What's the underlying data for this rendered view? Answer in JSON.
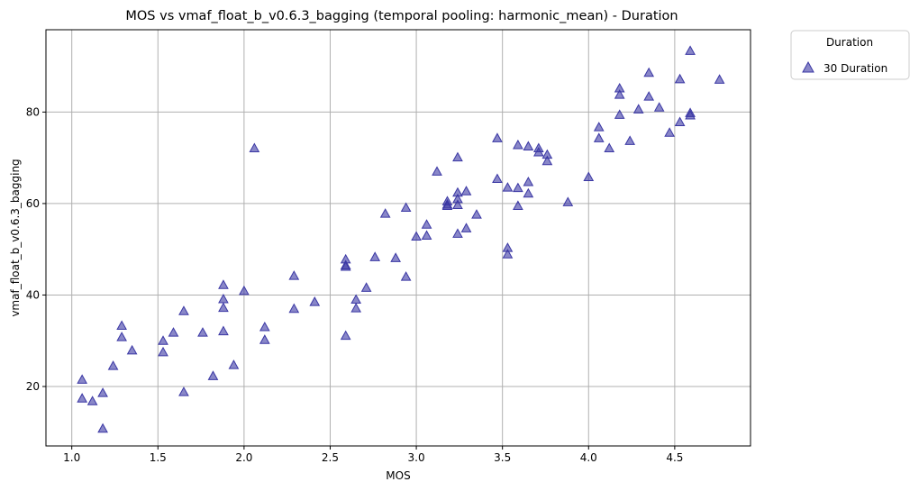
{
  "chart_data": {
    "type": "scatter",
    "title": "MOS vs vmaf_float_b_v0.6.3_bagging (temporal pooling: harmonic_mean) - Duration",
    "xlabel": "MOS",
    "ylabel": "vmaf_float_b_v0.6.3_bagging",
    "xlim": [
      0.85,
      4.94
    ],
    "ylim": [
      7,
      98
    ],
    "xticks": [
      "1.0",
      "1.5",
      "2.0",
      "2.5",
      "3.0",
      "3.5",
      "4.0",
      "4.5"
    ],
    "xtick_values": [
      1.0,
      1.5,
      2.0,
      2.5,
      3.0,
      3.5,
      4.0,
      4.5
    ],
    "yticks": [
      "20",
      "40",
      "60",
      "80"
    ],
    "ytick_values": [
      20,
      40,
      60,
      80
    ],
    "grid": true,
    "legend": {
      "title": "Duration",
      "position": "outside-top-right"
    },
    "series": [
      {
        "name": "30 Duration",
        "color": "#3a37a4",
        "marker": "triangle-up",
        "points": [
          [
            1.06,
            21.5
          ],
          [
            1.06,
            17.4
          ],
          [
            1.12,
            16.8
          ],
          [
            1.18,
            18.6
          ],
          [
            1.18,
            10.8
          ],
          [
            1.24,
            24.5
          ],
          [
            1.29,
            33.3
          ],
          [
            1.29,
            30.8
          ],
          [
            1.35,
            27.9
          ],
          [
            1.53,
            30.0
          ],
          [
            1.53,
            27.5
          ],
          [
            1.59,
            31.8
          ],
          [
            1.65,
            36.5
          ],
          [
            1.65,
            18.8
          ],
          [
            1.76,
            31.8
          ],
          [
            1.82,
            22.3
          ],
          [
            1.88,
            42.2
          ],
          [
            1.88,
            39.1
          ],
          [
            1.88,
            37.2
          ],
          [
            1.88,
            32.1
          ],
          [
            1.94,
            24.7
          ],
          [
            2.0,
            40.9
          ],
          [
            2.06,
            72.1
          ],
          [
            2.12,
            33.0
          ],
          [
            2.12,
            30.2
          ],
          [
            2.29,
            44.2
          ],
          [
            2.29,
            37.0
          ],
          [
            2.41,
            38.5
          ],
          [
            2.59,
            47.8
          ],
          [
            2.59,
            46.5
          ],
          [
            2.59,
            46.2
          ],
          [
            2.59,
            31.1
          ],
          [
            2.65,
            39.0
          ],
          [
            2.65,
            37.1
          ],
          [
            2.71,
            41.6
          ],
          [
            2.76,
            48.3
          ],
          [
            2.82,
            57.8
          ],
          [
            2.88,
            48.1
          ],
          [
            2.94,
            59.1
          ],
          [
            2.94,
            44.0
          ],
          [
            3.0,
            52.8
          ],
          [
            3.06,
            55.4
          ],
          [
            3.06,
            53.0
          ],
          [
            3.12,
            67.0
          ],
          [
            3.18,
            60.5
          ],
          [
            3.18,
            59.8
          ],
          [
            3.18,
            59.5
          ],
          [
            3.24,
            70.1
          ],
          [
            3.24,
            62.4
          ],
          [
            3.24,
            61.0
          ],
          [
            3.24,
            59.7
          ],
          [
            3.24,
            53.4
          ],
          [
            3.29,
            62.7
          ],
          [
            3.29,
            54.6
          ],
          [
            3.35,
            57.6
          ],
          [
            3.47,
            74.3
          ],
          [
            3.47,
            65.4
          ],
          [
            3.53,
            63.5
          ],
          [
            3.53,
            50.3
          ],
          [
            3.53,
            48.9
          ],
          [
            3.59,
            72.8
          ],
          [
            3.59,
            63.4
          ],
          [
            3.59,
            59.5
          ],
          [
            3.65,
            72.5
          ],
          [
            3.65,
            64.7
          ],
          [
            3.65,
            62.2
          ],
          [
            3.71,
            72.1
          ],
          [
            3.71,
            71.2
          ],
          [
            3.76,
            70.7
          ],
          [
            3.76,
            69.3
          ],
          [
            3.88,
            60.3
          ],
          [
            4.0,
            65.8
          ],
          [
            4.06,
            76.7
          ],
          [
            4.06,
            74.3
          ],
          [
            4.12,
            72.1
          ],
          [
            4.18,
            85.2
          ],
          [
            4.18,
            83.8
          ],
          [
            4.18,
            79.4
          ],
          [
            4.24,
            73.7
          ],
          [
            4.29,
            80.6
          ],
          [
            4.35,
            88.6
          ],
          [
            4.35,
            83.4
          ],
          [
            4.41,
            81.0
          ],
          [
            4.47,
            75.5
          ],
          [
            4.53,
            87.2
          ],
          [
            4.53,
            77.8
          ],
          [
            4.59,
            93.4
          ],
          [
            4.59,
            79.8
          ],
          [
            4.59,
            79.3
          ],
          [
            4.76,
            87.1
          ]
        ]
      }
    ]
  }
}
